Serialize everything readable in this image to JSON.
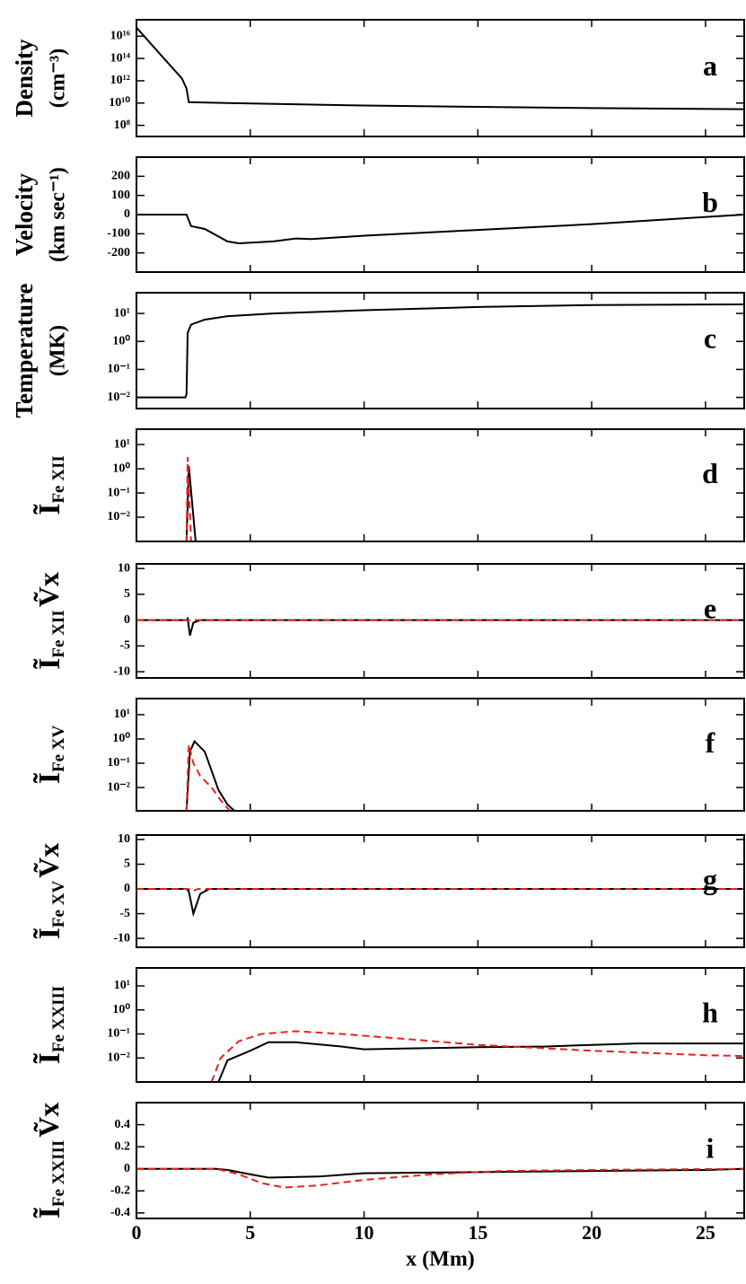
{
  "chart_data": [
    {
      "type": "line",
      "yscale": "log",
      "ylabel": [
        "Density",
        "(cm⁻³)"
      ],
      "panel_label": "a",
      "xlim": [
        0,
        26.7
      ],
      "ylim": [
        10000000.0,
        3e+17
      ],
      "yticks": [
        {
          "value": 100000000.0,
          "label": "10⁸"
        },
        {
          "value": 10000000000.0,
          "label": "10¹⁰"
        },
        {
          "value": 1000000000000.0,
          "label": "10¹²"
        },
        {
          "value": 100000000000000.0,
          "label": "10¹⁴"
        },
        {
          "value": 1e+16,
          "label": "10¹⁶"
        }
      ],
      "series": [
        {
          "color": "#000000",
          "linestyle": "solid",
          "x": [
            0,
            1,
            2,
            2.2,
            2.3,
            4,
            10,
            20,
            26.7
          ],
          "values": [
            6e+16,
            300000000000000.0,
            1600000000000.0,
            200000000000.0,
            12000000000.0,
            10000000000.0,
            6000000000.0,
            3500000000.0,
            2800000000.0
          ]
        }
      ]
    },
    {
      "type": "line",
      "yscale": "linear",
      "ylabel": [
        "Velocity",
        "(km sec⁻¹)"
      ],
      "panel_label": "b",
      "xlim": [
        0,
        26.7
      ],
      "ylim": [
        -300,
        300
      ],
      "yticks": [
        -200,
        -100,
        0,
        100,
        200
      ],
      "series": [
        {
          "color": "#000000",
          "linestyle": "solid",
          "x": [
            0,
            2.2,
            2.4,
            3,
            4,
            4.5,
            6,
            7,
            7.7,
            10,
            15,
            20,
            24,
            26.7
          ],
          "values": [
            0,
            0,
            -60,
            -75,
            -140,
            -150,
            -140,
            -125,
            -128,
            -110,
            -80,
            -50,
            -20,
            0
          ]
        }
      ]
    },
    {
      "type": "line",
      "yscale": "log",
      "ylabel": [
        "Temperature",
        "(MK)"
      ],
      "panel_label": "c",
      "xlim": [
        0,
        26.7
      ],
      "ylim": [
        0.004,
        55
      ],
      "yticks": [
        {
          "value": 0.01,
          "label": "10⁻²"
        },
        {
          "value": 0.1,
          "label": "10⁻¹"
        },
        {
          "value": 1,
          "label": "10⁰"
        },
        {
          "value": 10,
          "label": "10¹"
        }
      ],
      "series": [
        {
          "color": "#000000",
          "linestyle": "solid",
          "x": [
            0,
            2.15,
            2.2,
            2.25,
            2.4,
            3,
            4,
            6,
            10,
            15,
            20,
            26.7
          ],
          "values": [
            0.01,
            0.01,
            0.013,
            2,
            4,
            6,
            8,
            10,
            13,
            17,
            20,
            21
          ]
        }
      ]
    },
    {
      "type": "line",
      "yscale": "log",
      "ylabel_symbol": "Ĩ",
      "ylabel_sub": "Fe XII",
      "panel_label": "d",
      "xlim": [
        0,
        26.7
      ],
      "ylim": [
        0.001,
        43
      ],
      "yticks": [
        {
          "value": 0.01,
          "label": "10⁻²"
        },
        {
          "value": 0.1,
          "label": "10⁻¹"
        },
        {
          "value": 1,
          "label": "10⁰"
        },
        {
          "value": 10,
          "label": "10¹"
        }
      ],
      "series": [
        {
          "color": "#000000",
          "linestyle": "solid",
          "x": [
            2.2,
            2.3,
            2.6
          ],
          "values": [
            0.001,
            1.3,
            0.001
          ]
        },
        {
          "color": "#e8211f",
          "linestyle": "dashed",
          "x": [
            2.2,
            2.25,
            2.4
          ],
          "values": [
            0.001,
            3,
            0.001
          ]
        }
      ]
    },
    {
      "type": "line",
      "yscale": "linear",
      "ylabel_symbol": "Ĩ",
      "ylabel_sub": "Fe XII",
      "ylabel_tail": "Ṽx",
      "panel_label": "e",
      "xlim": [
        0,
        26.7
      ],
      "ylim": [
        -11.2,
        10.9
      ],
      "yticks": [
        -10,
        -5,
        0,
        5,
        10
      ],
      "series": [
        {
          "color": "#000000",
          "linestyle": "solid",
          "x": [
            0,
            2.2,
            2.25,
            2.35,
            2.5,
            2.8,
            26.7
          ],
          "values": [
            0,
            0,
            0.3,
            -3,
            -0.5,
            0,
            0
          ]
        },
        {
          "color": "#e8211f",
          "linestyle": "dashed",
          "x": [
            0,
            26.7
          ],
          "values": [
            0,
            0
          ]
        }
      ]
    },
    {
      "type": "line",
      "yscale": "log",
      "ylabel_symbol": "Ĩ",
      "ylabel_sub": "Fe XV",
      "panel_label": "f",
      "xlim": [
        0,
        26.7
      ],
      "ylim": [
        0.0011,
        46
      ],
      "yticks": [
        {
          "value": 0.01,
          "label": "10⁻²"
        },
        {
          "value": 0.1,
          "label": "10⁻¹"
        },
        {
          "value": 1,
          "label": "10⁰"
        },
        {
          "value": 10,
          "label": "10¹"
        }
      ],
      "series": [
        {
          "color": "#000000",
          "linestyle": "solid",
          "x": [
            2.2,
            2.35,
            2.55,
            3,
            3.3,
            3.6,
            4,
            4.3
          ],
          "values": [
            0.0011,
            0.3,
            0.8,
            0.3,
            0.05,
            0.008,
            0.002,
            0.0011
          ]
        },
        {
          "color": "#e8211f",
          "linestyle": "dashed",
          "x": [
            2.2,
            2.3,
            2.5,
            2.8,
            3.3,
            3.7,
            4.1
          ],
          "values": [
            0.0011,
            0.6,
            0.1,
            0.03,
            0.01,
            0.003,
            0.0011
          ]
        }
      ]
    },
    {
      "type": "line",
      "yscale": "linear",
      "ylabel_symbol": "Ĩ",
      "ylabel_sub": "Fe XV",
      "ylabel_tail": "Ṽx",
      "panel_label": "g",
      "xlim": [
        0,
        26.7
      ],
      "ylim": [
        -11.8,
        10.9
      ],
      "yticks": [
        -10,
        -5,
        0,
        5,
        10
      ],
      "series": [
        {
          "color": "#000000",
          "linestyle": "solid",
          "x": [
            0,
            2.2,
            2.3,
            2.5,
            2.8,
            3.2,
            26.7
          ],
          "values": [
            0,
            0,
            -0.5,
            -5,
            -1,
            0,
            0
          ]
        },
        {
          "color": "#e8211f",
          "linestyle": "dashed",
          "x": [
            0,
            2.3,
            2.45,
            2.7,
            26.7
          ],
          "values": [
            0,
            0,
            -0.5,
            0,
            0
          ]
        }
      ]
    },
    {
      "type": "line",
      "yscale": "log",
      "ylabel_symbol": "Ĩ",
      "ylabel_sub": "Fe XXIII",
      "panel_label": "h",
      "xlim": [
        0,
        26.7
      ],
      "ylim": [
        0.001,
        56
      ],
      "yticks": [
        {
          "value": 0.01,
          "label": "10⁻²"
        },
        {
          "value": 0.1,
          "label": "10⁻¹"
        },
        {
          "value": 1,
          "label": "10⁰"
        },
        {
          "value": 10,
          "label": "10¹"
        }
      ],
      "series": [
        {
          "color": "#000000",
          "linestyle": "solid",
          "x": [
            3.6,
            4,
            5,
            5.8,
            7,
            9,
            10,
            12,
            15,
            18,
            20,
            22,
            26.7
          ],
          "values": [
            0.001,
            0.008,
            0.02,
            0.045,
            0.045,
            0.03,
            0.023,
            0.025,
            0.028,
            0.03,
            0.035,
            0.04,
            0.04
          ]
        },
        {
          "color": "#e8211f",
          "linestyle": "dashed",
          "x": [
            3.3,
            3.7,
            4.5,
            5.5,
            7,
            9,
            12,
            15,
            20,
            25,
            26.7
          ],
          "values": [
            0.001,
            0.01,
            0.05,
            0.1,
            0.13,
            0.1,
            0.06,
            0.035,
            0.02,
            0.013,
            0.012
          ]
        }
      ]
    },
    {
      "type": "line",
      "yscale": "linear",
      "ylabel_symbol": "Ĩ",
      "ylabel_sub": "Fe XXIII",
      "ylabel_tail": "Ṽx",
      "panel_label": "i",
      "xlim": [
        0,
        26.7
      ],
      "ylim": [
        -0.45,
        0.6
      ],
      "yticks": [
        -0.4,
        -0.2,
        0,
        0.2,
        0.4
      ],
      "xticks": [
        0,
        5,
        10,
        15,
        20,
        25
      ],
      "xlabel": "x (Mm)",
      "series": [
        {
          "color": "#000000",
          "linestyle": "solid",
          "x": [
            0,
            3.5,
            4,
            5,
            5.8,
            8,
            10,
            15,
            20,
            25,
            26.7
          ],
          "values": [
            0,
            0,
            -0.01,
            -0.05,
            -0.08,
            -0.07,
            -0.04,
            -0.03,
            -0.02,
            -0.01,
            0
          ]
        },
        {
          "color": "#e8211f",
          "linestyle": "dashed",
          "x": [
            0,
            3.5,
            4.5,
            5.5,
            6.5,
            8,
            10,
            13,
            16,
            20,
            26.7
          ],
          "values": [
            0,
            0,
            -0.05,
            -0.13,
            -0.17,
            -0.15,
            -0.1,
            -0.05,
            -0.02,
            -0.01,
            0
          ]
        }
      ]
    }
  ]
}
